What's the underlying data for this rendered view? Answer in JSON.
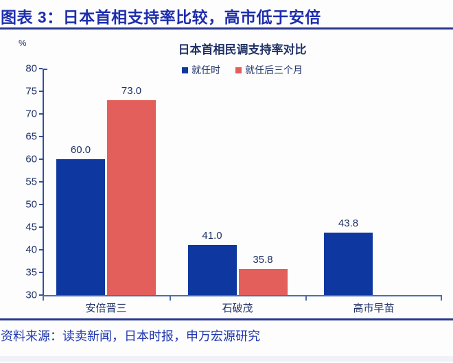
{
  "header": {
    "title": "图表 3：日本首相支持率比较，高市低于安倍"
  },
  "chart_data": {
    "type": "bar",
    "title": "日本首相民调支持率对比",
    "unit_label": "%",
    "categories": [
      "安倍晋三",
      "石破茂",
      "高市早苗"
    ],
    "series": [
      {
        "name": "就任时",
        "color": "#0e38a0",
        "values": [
          60.0,
          41.0,
          43.8
        ]
      },
      {
        "name": "就任后三个月",
        "color": "#e25f5b",
        "values": [
          73.0,
          35.8,
          null
        ]
      }
    ],
    "ylim": [
      30,
      80
    ],
    "yticks": [
      80,
      75,
      70,
      65,
      60,
      55,
      50,
      45,
      40,
      35,
      30
    ],
    "grid": false,
    "legend_position": "top",
    "value_label_decimals": 1
  },
  "footer": {
    "source": "资料来源：读卖新闻，日本时报，申万宏源研究"
  },
  "colors": {
    "accent_blue": "#1e2eae",
    "bar_blue": "#0e38a0",
    "bar_red": "#e25f5b",
    "axis": "#33509c",
    "text_navy": "#1f3166"
  }
}
